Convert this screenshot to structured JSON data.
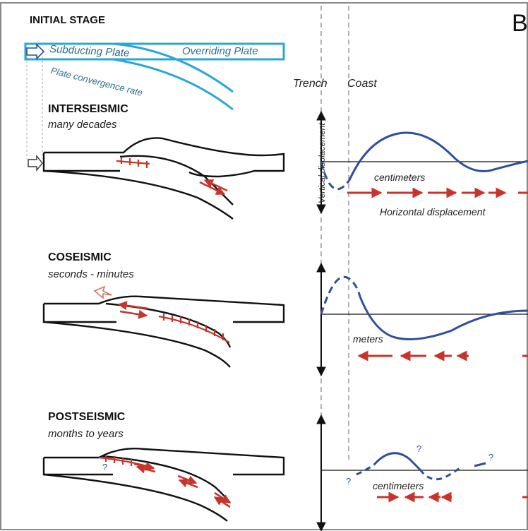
{
  "panel_letter": "B",
  "stages": {
    "initial": {
      "title": "INITIAL STAGE",
      "labels": {
        "subducting": "Subducting Plate",
        "overriding": "Overriding Plate",
        "convergence": "Plate convergence rate"
      }
    },
    "interseismic": {
      "title": "INTERSEISMIC",
      "duration": "many decades",
      "unit": "centimeters",
      "horizontal": "Horizontal displacement"
    },
    "coseismic": {
      "title": "COSEISMIC",
      "duration": "seconds - minutes",
      "unit": "meters"
    },
    "postseismic": {
      "title": "POSTSEISMIC",
      "duration": "months to years",
      "unit": "centimeters"
    }
  },
  "axis": {
    "trench": "Trench",
    "coast": "Coast",
    "vertical": "Vertical displacement"
  },
  "question_mark": "?",
  "colors": {
    "plate_outline": "#111111",
    "initial_plate": "#2aa7d6",
    "displacement_curve": "#2f4f9e",
    "arrow_red": "#c8342b",
    "arrow_outline_orange": "#d9735a"
  }
}
